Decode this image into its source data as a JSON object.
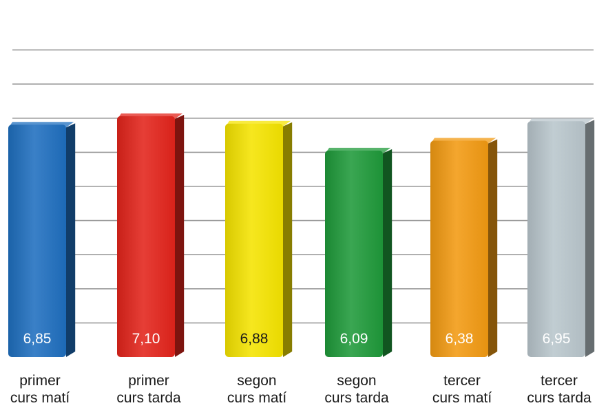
{
  "chart_data": {
    "type": "bar",
    "title": "",
    "xlabel": "",
    "ylabel": "",
    "ylim": [
      0,
      9
    ],
    "grid": true,
    "categories": [
      [
        "primer",
        "curs matí"
      ],
      [
        "primer",
        "curs tarda"
      ],
      [
        "segon",
        "curs matí"
      ],
      [
        "segon",
        "curs tarda"
      ],
      [
        "tercer",
        "curs matí"
      ],
      [
        "tercer",
        "curs tarda"
      ]
    ],
    "values": [
      6.85,
      7.1,
      6.88,
      6.09,
      6.38,
      6.95
    ],
    "value_labels": [
      "6,85",
      "7,10",
      "6,88",
      "6,09",
      "6,38",
      "6,95"
    ],
    "colors": [
      "#1f6fbf",
      "#e3241b",
      "#f5e400",
      "#1f9a3a",
      "#f29a12",
      "#b9c6cc"
    ],
    "value_label_colors": [
      "#ffffff",
      "#ffffff",
      "#1a1a1a",
      "#ffffff",
      "#ffffff",
      "#ffffff"
    ]
  }
}
